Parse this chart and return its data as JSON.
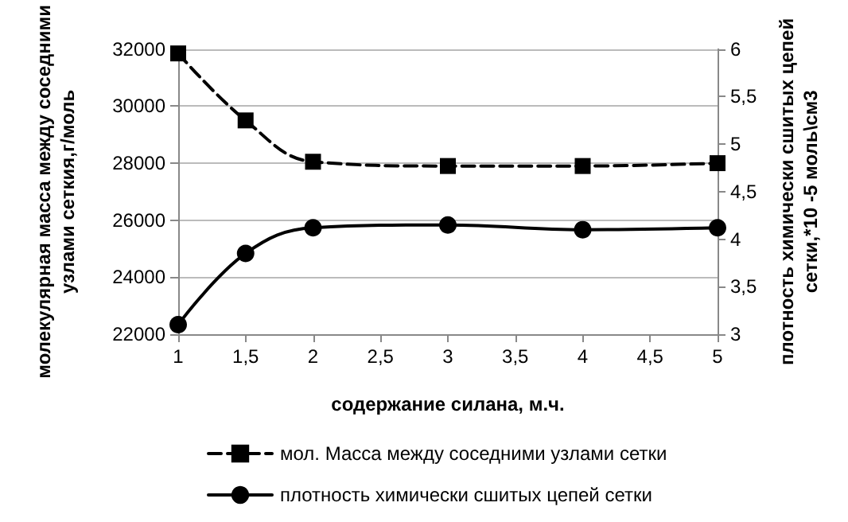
{
  "chart_data": {
    "type": "line",
    "xlabel": "содержание силана, м.ч.",
    "ylabel": "молекулярная масса между соседними\nузлами сеткия,г/моль",
    "y2label": "плотность химически сшитых цепей\nсетки,*10 -5 моль\\см3",
    "x": [
      1,
      1.5,
      2,
      3,
      4,
      5
    ],
    "series": [
      {
        "name": "мол. Масса между соседними узлами сетки",
        "color": "#000000",
        "marker": "square",
        "line_style": "dashed",
        "values": [
          31850,
          29500,
          28050,
          27900,
          27900,
          28000
        ]
      },
      {
        "name": "плотность химически сшитых цепей сетки",
        "color": "#000000",
        "marker": "circle",
        "line_style": "solid",
        "axis": "y2",
        "values": [
          3.1,
          3.85,
          4.12,
          4.15,
          4.1,
          4.12
        ]
      }
    ],
    "xlim": [
      1,
      5
    ],
    "xticks": [
      1,
      {
        "value": 1.5,
        "label": "1,5"
      },
      2,
      {
        "value": 2.5,
        "label": "2,5"
      },
      3,
      {
        "value": 3.5,
        "label": "3,5"
      },
      4,
      {
        "value": 4.5,
        "label": "4,5"
      },
      5
    ],
    "ylim": [
      22000,
      32000
    ],
    "yticks": [
      22000,
      24000,
      26000,
      28000,
      30000,
      32000
    ],
    "y2lim": [
      3,
      6
    ],
    "y2ticks": [
      3,
      {
        "value": 3.5,
        "label": "3,5"
      },
      4,
      {
        "value": 4.5,
        "label": "4,5"
      },
      5,
      {
        "value": 5.5,
        "label": "5,5"
      },
      6
    ],
    "grid": "y",
    "legend": "bottom"
  }
}
